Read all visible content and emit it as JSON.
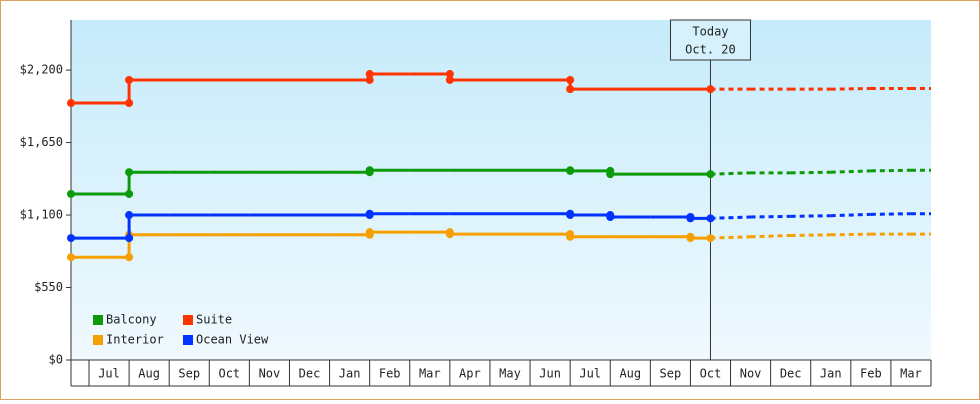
{
  "chart_data": {
    "type": "step-line",
    "categories": [
      null,
      "Jul",
      "Aug",
      "Sep",
      "Oct",
      "Nov",
      "Dec",
      "Jan",
      "Feb",
      "Mar",
      "Apr",
      "May",
      "Jun",
      "Jul",
      "Aug",
      "Sep",
      "Oct",
      "Nov",
      "Dec",
      "Jan",
      "Feb",
      "Mar"
    ],
    "ylim": [
      0,
      2580
    ],
    "yticks": [
      {
        "value": 0,
        "label": "$0"
      },
      {
        "value": 550,
        "label": "$550"
      },
      {
        "value": 1100,
        "label": "$1,100"
      },
      {
        "value": 1650,
        "label": "$1,650"
      },
      {
        "value": 2200,
        "label": "$2,200"
      }
    ],
    "today_label": [
      "Today",
      "Oct. 20"
    ],
    "series": [
      {
        "name": "Balcony",
        "color": "#0a9a0a",
        "values": [
          1260,
          1260,
          1425,
          1425,
          1425,
          1425,
          1425,
          1425,
          1440,
          1440,
          1440,
          1440,
          1440,
          1435,
          1410,
          1410,
          1410,
          null,
          null,
          null,
          null,
          null
        ],
        "projected_values": [
          null,
          null,
          null,
          null,
          null,
          null,
          null,
          null,
          null,
          null,
          null,
          null,
          null,
          null,
          null,
          null,
          1410,
          1420,
          1420,
          1425,
          1435,
          1440
        ]
      },
      {
        "name": "Suite",
        "color": "#ff3300",
        "values": [
          1950,
          1950,
          2125,
          2125,
          2125,
          2125,
          2125,
          2125,
          2170,
          2170,
          2125,
          2125,
          2125,
          2055,
          2055,
          2055,
          2055,
          null,
          null,
          null,
          null,
          null
        ],
        "projected_values": [
          null,
          null,
          null,
          null,
          null,
          null,
          null,
          null,
          null,
          null,
          null,
          null,
          null,
          null,
          null,
          null,
          2055,
          2055,
          2055,
          2055,
          2060,
          2060
        ]
      },
      {
        "name": "Interior",
        "color": "#f5a000",
        "values": [
          780,
          780,
          950,
          950,
          950,
          950,
          950,
          950,
          970,
          970,
          955,
          955,
          955,
          935,
          935,
          935,
          925,
          null,
          null,
          null,
          null,
          null
        ],
        "projected_values": [
          null,
          null,
          null,
          null,
          null,
          null,
          null,
          null,
          null,
          null,
          null,
          null,
          null,
          null,
          null,
          null,
          925,
          935,
          945,
          950,
          955,
          955
        ]
      },
      {
        "name": "Ocean View",
        "color": "#0033ff",
        "values": [
          925,
          925,
          1100,
          1100,
          1100,
          1100,
          1100,
          1100,
          1110,
          1110,
          1110,
          1110,
          1110,
          1100,
          1085,
          1085,
          1075,
          null,
          null,
          null,
          null,
          null
        ],
        "projected_values": [
          null,
          null,
          null,
          null,
          null,
          null,
          null,
          null,
          null,
          null,
          null,
          null,
          null,
          null,
          null,
          null,
          1075,
          1085,
          1090,
          1095,
          1105,
          1110
        ]
      }
    ]
  }
}
